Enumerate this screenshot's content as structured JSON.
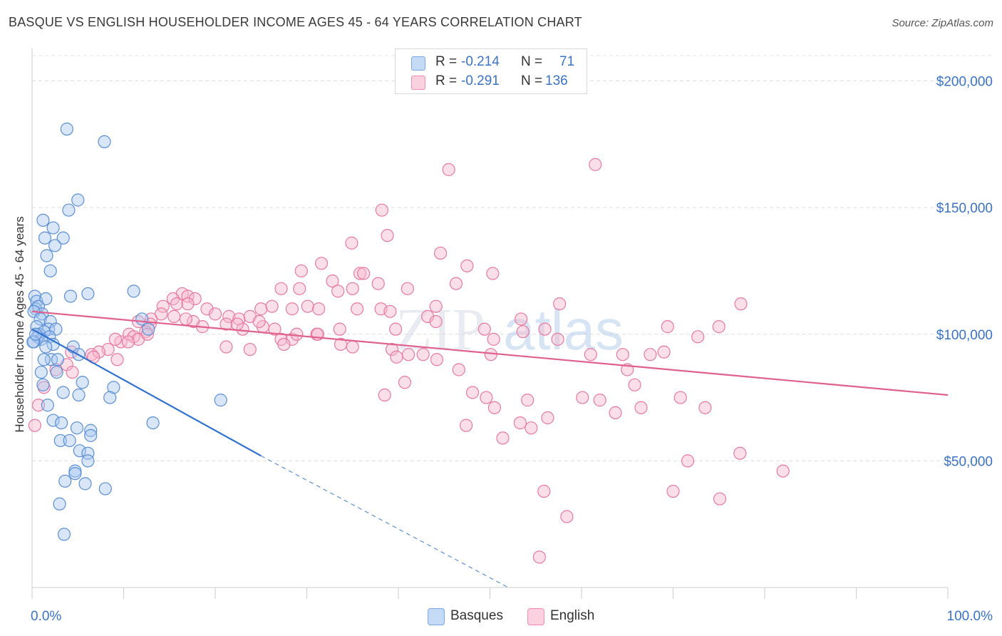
{
  "header": {
    "title": "BASQUE VS ENGLISH HOUSEHOLDER INCOME AGES 45 - 64 YEARS CORRELATION CHART",
    "source": "Source: ZipAtlas.com"
  },
  "legend": {
    "r_label": "R =",
    "n_label": "N =",
    "rows": [
      {
        "name": "Basques",
        "r": "-0.214",
        "n": "71",
        "color": "#7aa8e6"
      },
      {
        "name": "English",
        "r": "-0.291",
        "n": "136",
        "color": "#f08cb0"
      }
    ]
  },
  "watermark": {
    "zip": "ZIP",
    "atlas": "atlas"
  },
  "chart_data": {
    "type": "scatter",
    "title": "BASQUE VS ENGLISH HOUSEHOLDER INCOME AGES 45 - 64 YEARS CORRELATION CHART",
    "xlabel": "",
    "ylabel": "Householder Income Ages 45 - 64 years",
    "xlim": [
      0,
      100
    ],
    "ylim": [
      0,
      210000
    ],
    "x_tick_labels": [
      "0.0%",
      "100.0%"
    ],
    "y_ticks": [
      50000,
      100000,
      150000,
      200000
    ],
    "y_tick_labels": [
      "$50,000",
      "$100,000",
      "$150,000",
      "$200,000"
    ],
    "grid": true,
    "legend_position": "top-center",
    "series": [
      {
        "name": "Basques",
        "color": "#7aa8e6",
        "trend": {
          "x": [
            0,
            25
          ],
          "y": [
            102000,
            52000
          ],
          "dashed_extension_to": [
            52,
            0
          ]
        },
        "points": [
          [
            3.8,
            181000
          ],
          [
            7.9,
            176000
          ],
          [
            5.0,
            153000
          ],
          [
            1.2,
            145000
          ],
          [
            4.0,
            149000
          ],
          [
            2.3,
            142000
          ],
          [
            1.4,
            138000
          ],
          [
            3.4,
            138000
          ],
          [
            2.5,
            135000
          ],
          [
            1.6,
            131000
          ],
          [
            2.0,
            125000
          ],
          [
            4.2,
            115000
          ],
          [
            6.1,
            116000
          ],
          [
            11.1,
            117000
          ],
          [
            0.3,
            115000
          ],
          [
            0.5,
            113000
          ],
          [
            1.5,
            114000
          ],
          [
            0.4,
            110000
          ],
          [
            0.7,
            111000
          ],
          [
            1.1,
            108000
          ],
          [
            0.2,
            109000
          ],
          [
            0.9,
            106000
          ],
          [
            2.0,
            105000
          ],
          [
            0.5,
            103000
          ],
          [
            1.8,
            102000
          ],
          [
            2.6,
            102000
          ],
          [
            0.8,
            100000
          ],
          [
            0.6,
            99000
          ],
          [
            1.3,
            101000
          ],
          [
            1.9,
            99000
          ],
          [
            1.0,
            98000
          ],
          [
            2.3,
            96000
          ],
          [
            1.5,
            95000
          ],
          [
            0.2,
            97000
          ],
          [
            12.0,
            106000
          ],
          [
            12.7,
            102000
          ],
          [
            4.5,
            95000
          ],
          [
            2.1,
            90000
          ],
          [
            2.8,
            90000
          ],
          [
            1.3,
            90000
          ],
          [
            5.1,
            92000
          ],
          [
            1.0,
            85000
          ],
          [
            2.7,
            85000
          ],
          [
            5.5,
            81000
          ],
          [
            1.2,
            80000
          ],
          [
            3.4,
            77000
          ],
          [
            8.9,
            79000
          ],
          [
            8.5,
            75000
          ],
          [
            5.1,
            76000
          ],
          [
            20.6,
            74000
          ],
          [
            1.7,
            72000
          ],
          [
            2.3,
            66000
          ],
          [
            3.2,
            65000
          ],
          [
            13.2,
            65000
          ],
          [
            4.9,
            63000
          ],
          [
            6.4,
            62000
          ],
          [
            6.4,
            60000
          ],
          [
            3.1,
            58000
          ],
          [
            4.1,
            58000
          ],
          [
            5.2,
            54000
          ],
          [
            6.1,
            53000
          ],
          [
            6.1,
            50000
          ],
          [
            4.7,
            46000
          ],
          [
            4.7,
            45000
          ],
          [
            3.6,
            42000
          ],
          [
            5.8,
            41000
          ],
          [
            8.0,
            39000
          ],
          [
            3.0,
            33000
          ],
          [
            3.5,
            21000
          ],
          [
            0.1,
            97000
          ],
          [
            0.4,
            100000
          ]
        ]
      },
      {
        "name": "English",
        "color": "#f08cb0",
        "trend": {
          "x": [
            0,
            100
          ],
          "y": [
            109000,
            76000
          ]
        },
        "points": [
          [
            45.5,
            165000
          ],
          [
            61.5,
            167000
          ],
          [
            38.2,
            149000
          ],
          [
            38.8,
            139000
          ],
          [
            34.9,
            136000
          ],
          [
            44.6,
            132000
          ],
          [
            31.6,
            128000
          ],
          [
            47.5,
            127000
          ],
          [
            50.3,
            124000
          ],
          [
            29.4,
            125000
          ],
          [
            35.8,
            124000
          ],
          [
            36.2,
            124000
          ],
          [
            32.8,
            121000
          ],
          [
            37.8,
            120000
          ],
          [
            46.3,
            120000
          ],
          [
            27.2,
            118000
          ],
          [
            29.2,
            118000
          ],
          [
            33.4,
            117000
          ],
          [
            41.0,
            118000
          ],
          [
            35.0,
            118000
          ],
          [
            16.4,
            116000
          ],
          [
            17.0,
            115000
          ],
          [
            15.4,
            114000
          ],
          [
            17.8,
            114000
          ],
          [
            15.8,
            112000
          ],
          [
            17.0,
            112000
          ],
          [
            14.3,
            111000
          ],
          [
            19.1,
            110000
          ],
          [
            20.0,
            108000
          ],
          [
            21.5,
            107000
          ],
          [
            22.6,
            106000
          ],
          [
            23.8,
            107000
          ],
          [
            25.0,
            110000
          ],
          [
            26.2,
            111000
          ],
          [
            28.4,
            110000
          ],
          [
            30.1,
            111000
          ],
          [
            31.3,
            110000
          ],
          [
            35.5,
            110000
          ],
          [
            38.1,
            110000
          ],
          [
            39.1,
            109000
          ],
          [
            43.2,
            107000
          ],
          [
            44.1,
            111000
          ],
          [
            44.1,
            105000
          ],
          [
            57.6,
            112000
          ],
          [
            77.4,
            112000
          ],
          [
            14.1,
            108000
          ],
          [
            13.0,
            106000
          ],
          [
            11.6,
            105000
          ],
          [
            12.9,
            104000
          ],
          [
            12.4,
            101000
          ],
          [
            17.6,
            105000
          ],
          [
            18.6,
            103000
          ],
          [
            21.2,
            104000
          ],
          [
            23.0,
            102000
          ],
          [
            25.2,
            103000
          ],
          [
            26.5,
            102000
          ],
          [
            31.1,
            100000
          ],
          [
            33.6,
            102000
          ],
          [
            39.7,
            102000
          ],
          [
            49.4,
            102000
          ],
          [
            53.4,
            106000
          ],
          [
            56.0,
            102000
          ],
          [
            69.4,
            103000
          ],
          [
            75.0,
            103000
          ],
          [
            10.6,
            100000
          ],
          [
            11.1,
            99000
          ],
          [
            11.6,
            98000
          ],
          [
            12.6,
            100000
          ],
          [
            9.7,
            97000
          ],
          [
            10.5,
            97000
          ],
          [
            9.1,
            98000
          ],
          [
            8.3,
            94000
          ],
          [
            6.5,
            92000
          ],
          [
            7.3,
            93000
          ],
          [
            6.7,
            91000
          ],
          [
            9.3,
            90000
          ],
          [
            4.3,
            93000
          ],
          [
            3.8,
            88000
          ],
          [
            2.6,
            86000
          ],
          [
            4.4,
            85000
          ],
          [
            1.3,
            79000
          ],
          [
            0.7,
            72000
          ],
          [
            0.3,
            64000
          ],
          [
            21.2,
            95000
          ],
          [
            23.8,
            94000
          ],
          [
            27.2,
            98000
          ],
          [
            28.4,
            98000
          ],
          [
            35.0,
            95000
          ],
          [
            39.3,
            94000
          ],
          [
            39.8,
            91000
          ],
          [
            44.2,
            90000
          ],
          [
            50.4,
            98000
          ],
          [
            53.6,
            101000
          ],
          [
            57.4,
            98000
          ],
          [
            67.5,
            92000
          ],
          [
            72.7,
            99000
          ],
          [
            41.1,
            92000
          ],
          [
            42.7,
            92000
          ],
          [
            46.6,
            86000
          ],
          [
            50.1,
            92000
          ],
          [
            61.0,
            92000
          ],
          [
            64.5,
            92000
          ],
          [
            65.0,
            86000
          ],
          [
            65.8,
            80000
          ],
          [
            69.0,
            93000
          ],
          [
            40.7,
            81000
          ],
          [
            38.5,
            76000
          ],
          [
            48.1,
            77000
          ],
          [
            49.6,
            75000
          ],
          [
            50.5,
            71000
          ],
          [
            54.1,
            74000
          ],
          [
            56.3,
            67000
          ],
          [
            60.1,
            75000
          ],
          [
            62.0,
            74000
          ],
          [
            66.5,
            71000
          ],
          [
            70.8,
            75000
          ],
          [
            73.5,
            71000
          ],
          [
            63.7,
            69000
          ],
          [
            53.3,
            65000
          ],
          [
            54.5,
            63000
          ],
          [
            47.4,
            64000
          ],
          [
            51.4,
            59000
          ],
          [
            77.3,
            53000
          ],
          [
            71.6,
            50000
          ],
          [
            82.0,
            46000
          ],
          [
            55.9,
            38000
          ],
          [
            70.0,
            38000
          ],
          [
            75.1,
            35000
          ],
          [
            58.4,
            28000
          ],
          [
            55.4,
            12000
          ],
          [
            31.2,
            100000
          ],
          [
            33.7,
            96000
          ],
          [
            27.5,
            96000
          ],
          [
            28.9,
            100000
          ],
          [
            22.4,
            104000
          ],
          [
            24.8,
            105000
          ],
          [
            15.5,
            107000
          ],
          [
            16.8,
            106000
          ]
        ]
      }
    ]
  }
}
